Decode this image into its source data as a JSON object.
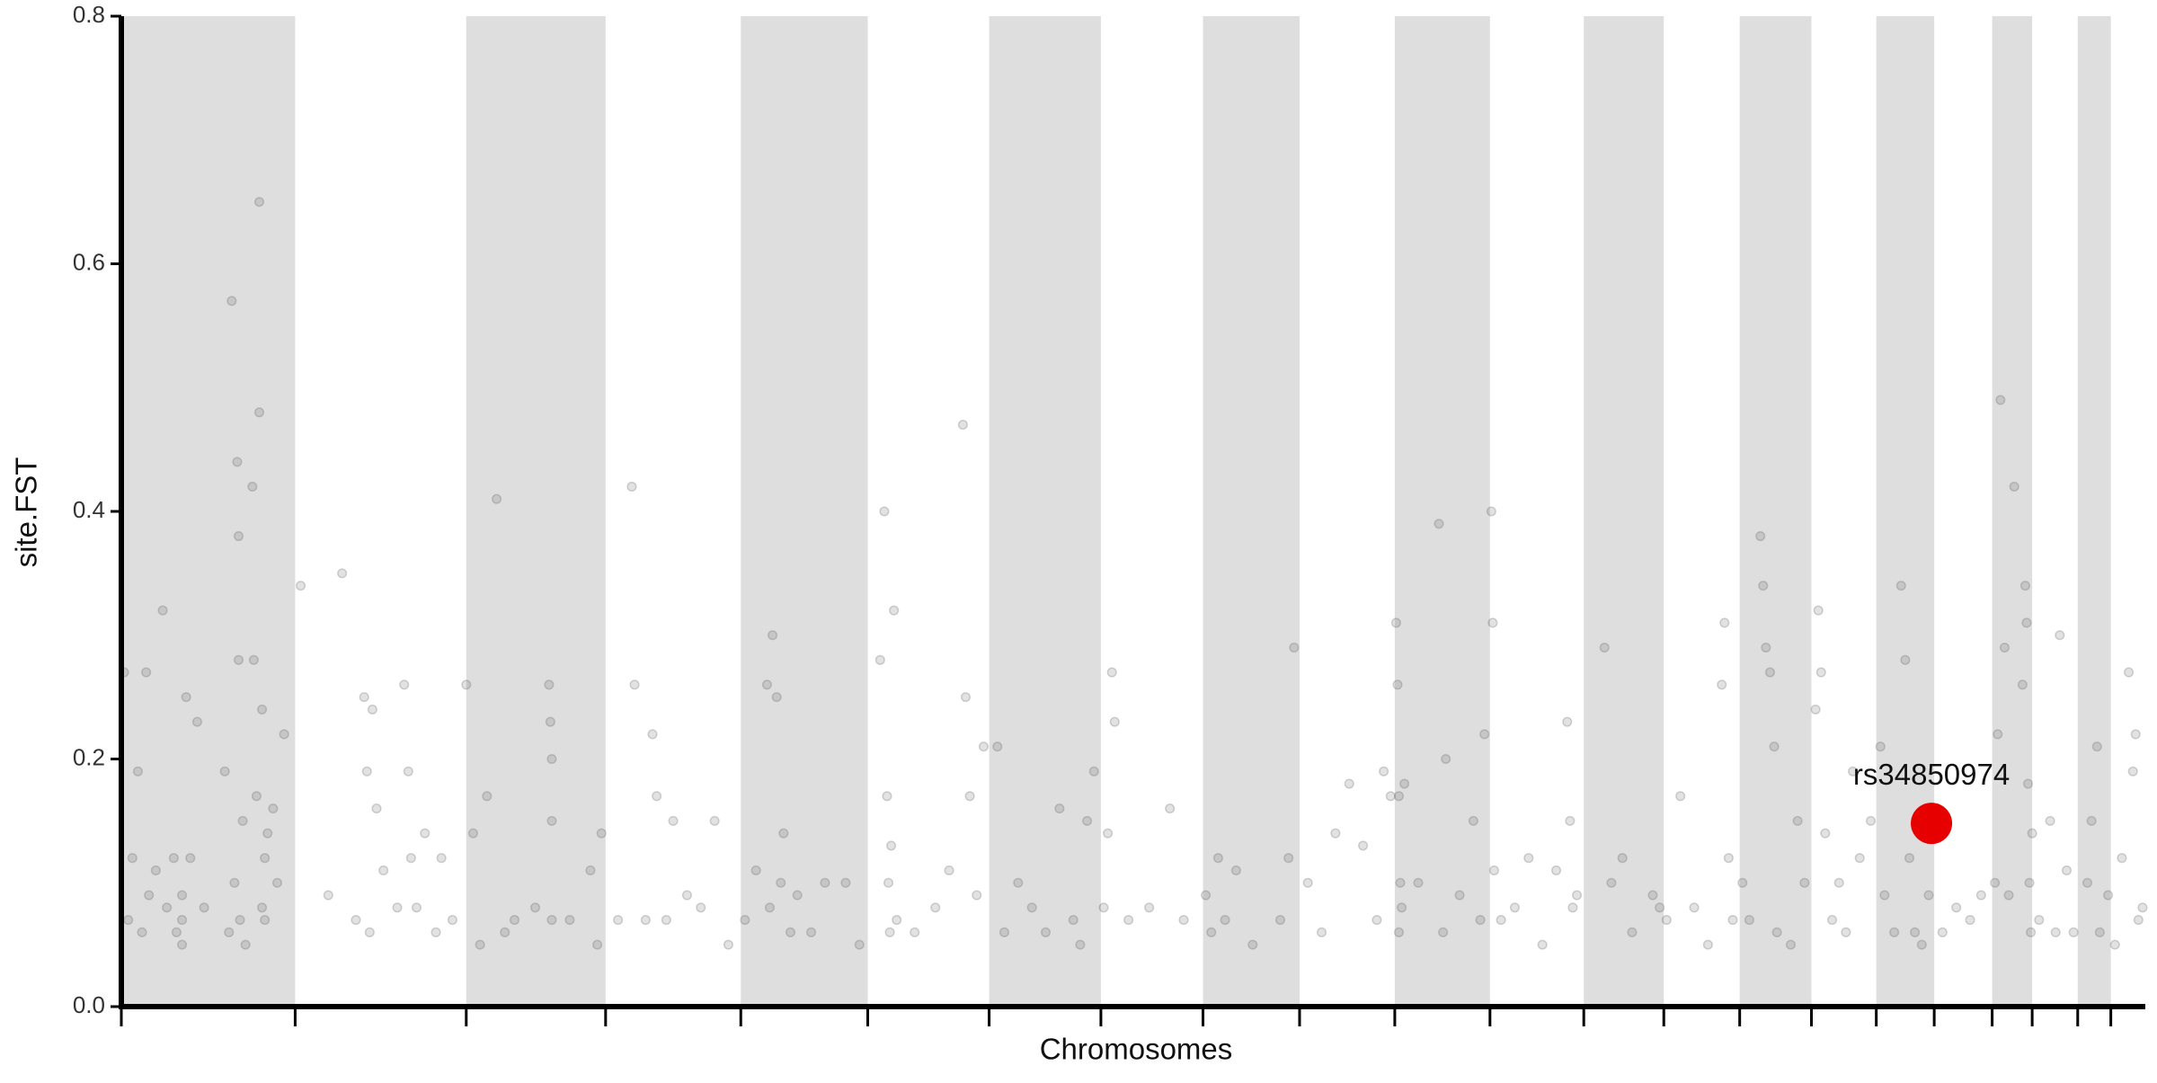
{
  "chart_data": {
    "type": "scatter",
    "xlabel": "Chromosomes",
    "ylabel": "site.FST",
    "xlim": [
      0,
      1467
    ],
    "ylim": [
      0,
      0.8
    ],
    "xticks": [
      0,
      126,
      250,
      351,
      449,
      541,
      629,
      710,
      784,
      854,
      923,
      992,
      1060,
      1118,
      1173,
      1225,
      1272,
      1314,
      1356,
      1385,
      1418,
      1442
    ],
    "yticks": [
      {
        "value": 0,
        "label": "0.0"
      },
      0.2,
      0.4,
      0.6,
      0.8
    ],
    "band_color": "#dedede",
    "series": [
      {
        "color": "#555555",
        "x": [
          2,
          5,
          8,
          12,
          15,
          18,
          20,
          25,
          30,
          33,
          38,
          40,
          44,
          44,
          44,
          47,
          50,
          55,
          60,
          75,
          78,
          80,
          82,
          84,
          85,
          85,
          86,
          88,
          90,
          95,
          96,
          98,
          100,
          100,
          102,
          102,
          104,
          104,
          106,
          110,
          113,
          118,
          130,
          150,
          160,
          170,
          176,
          178,
          180,
          182,
          185,
          190,
          200,
          205,
          208,
          210,
          214,
          220,
          228,
          232,
          240,
          250,
          255,
          260,
          265,
          272,
          278,
          285,
          300,
          310,
          311,
          312,
          312,
          312,
          325,
          340,
          345,
          348,
          360,
          370,
          372,
          380,
          385,
          388,
          395,
          400,
          410,
          420,
          430,
          440,
          452,
          460,
          468,
          470,
          472,
          475,
          478,
          480,
          485,
          490,
          500,
          510,
          525,
          535,
          550,
          553,
          555,
          556,
          557,
          558,
          560,
          562,
          575,
          590,
          600,
          610,
          612,
          615,
          620,
          625,
          635,
          640,
          650,
          660,
          670,
          680,
          690,
          695,
          700,
          705,
          712,
          715,
          718,
          720,
          730,
          745,
          760,
          770,
          786,
          790,
          795,
          800,
          808,
          820,
          840,
          846,
          850,
          860,
          870,
          880,
          890,
          900,
          910,
          915,
          920,
          924,
          925,
          926,
          926,
          927,
          928,
          930,
          940,
          955,
          958,
          960,
          970,
          980,
          985,
          988,
          993,
          994,
          995,
          1000,
          1010,
          1020,
          1030,
          1040,
          1048,
          1050,
          1052,
          1055,
          1075,
          1080,
          1088,
          1095,
          1110,
          1115,
          1120,
          1130,
          1140,
          1150,
          1160,
          1162,
          1165,
          1168,
          1175,
          1180,
          1188,
          1190,
          1192,
          1195,
          1198,
          1200,
          1210,
          1215,
          1220,
          1228,
          1230,
          1232,
          1235,
          1240,
          1245,
          1250,
          1255,
          1260,
          1268,
          1275,
          1278,
          1285,
          1290,
          1293,
          1296,
          1300,
          1305,
          1310,
          1320,
          1330,
          1340,
          1348,
          1358,
          1360,
          1362,
          1365,
          1368,
          1372,
          1378,
          1380,
          1381,
          1382,
          1383,
          1384,
          1385,
          1390,
          1398,
          1402,
          1405,
          1410,
          1415,
          1425,
          1428,
          1432,
          1434,
          1440,
          1445,
          1450,
          1455,
          1458,
          1460,
          1462,
          1465
        ],
        "values": [
          0.27,
          0.07,
          0.12,
          0.19,
          0.06,
          0.27,
          0.09,
          0.11,
          0.32,
          0.08,
          0.12,
          0.06,
          0.07,
          0.09,
          0.05,
          0.25,
          0.12,
          0.23,
          0.08,
          0.19,
          0.06,
          0.57,
          0.1,
          0.44,
          0.38,
          0.28,
          0.07,
          0.15,
          0.05,
          0.42,
          0.28,
          0.17,
          0.48,
          0.65,
          0.24,
          0.08,
          0.07,
          0.12,
          0.14,
          0.16,
          0.1,
          0.22,
          0.34,
          0.09,
          0.35,
          0.07,
          0.25,
          0.19,
          0.06,
          0.24,
          0.16,
          0.11,
          0.08,
          0.26,
          0.19,
          0.12,
          0.08,
          0.14,
          0.06,
          0.12,
          0.07,
          0.26,
          0.14,
          0.05,
          0.17,
          0.41,
          0.06,
          0.07,
          0.08,
          0.26,
          0.23,
          0.2,
          0.15,
          0.07,
          0.07,
          0.11,
          0.05,
          0.14,
          0.07,
          0.42,
          0.26,
          0.07,
          0.22,
          0.17,
          0.07,
          0.15,
          0.09,
          0.08,
          0.15,
          0.05,
          0.07,
          0.11,
          0.26,
          0.08,
          0.3,
          0.25,
          0.1,
          0.14,
          0.06,
          0.09,
          0.06,
          0.1,
          0.1,
          0.05,
          0.28,
          0.4,
          0.17,
          0.1,
          0.06,
          0.13,
          0.32,
          0.07,
          0.06,
          0.08,
          0.11,
          0.47,
          0.25,
          0.17,
          0.09,
          0.21,
          0.21,
          0.06,
          0.1,
          0.08,
          0.06,
          0.16,
          0.07,
          0.05,
          0.15,
          0.19,
          0.08,
          0.14,
          0.27,
          0.23,
          0.07,
          0.08,
          0.16,
          0.07,
          0.09,
          0.06,
          0.12,
          0.07,
          0.11,
          0.05,
          0.07,
          0.12,
          0.29,
          0.1,
          0.06,
          0.14,
          0.18,
          0.13,
          0.07,
          0.19,
          0.17,
          0.31,
          0.26,
          0.17,
          0.06,
          0.1,
          0.08,
          0.18,
          0.1,
          0.39,
          0.06,
          0.2,
          0.09,
          0.15,
          0.07,
          0.22,
          0.4,
          0.31,
          0.11,
          0.07,
          0.08,
          0.12,
          0.05,
          0.11,
          0.23,
          0.15,
          0.08,
          0.09,
          0.29,
          0.1,
          0.12,
          0.06,
          0.09,
          0.08,
          0.07,
          0.17,
          0.08,
          0.05,
          0.26,
          0.31,
          0.12,
          0.07,
          0.1,
          0.07,
          0.38,
          0.34,
          0.29,
          0.27,
          0.21,
          0.06,
          0.05,
          0.15,
          0.1,
          0.24,
          0.32,
          0.27,
          0.14,
          0.07,
          0.1,
          0.06,
          0.19,
          0.12,
          0.15,
          0.21,
          0.09,
          0.06,
          0.34,
          0.28,
          0.12,
          0.06,
          0.05,
          0.09,
          0.06,
          0.08,
          0.07,
          0.09,
          0.1,
          0.22,
          0.49,
          0.29,
          0.09,
          0.42,
          0.26,
          0.34,
          0.31,
          0.18,
          0.1,
          0.06,
          0.14,
          0.07,
          0.15,
          0.06,
          0.3,
          0.11,
          0.06,
          0.1,
          0.15,
          0.21,
          0.06,
          0.09,
          0.05,
          0.12,
          0.27,
          0.19,
          0.22,
          0.07,
          0.08
        ]
      },
      {
        "name": "rs34850974",
        "color": "#e60000",
        "x": [
          1312
        ],
        "values": [
          0.148
        ]
      }
    ]
  }
}
